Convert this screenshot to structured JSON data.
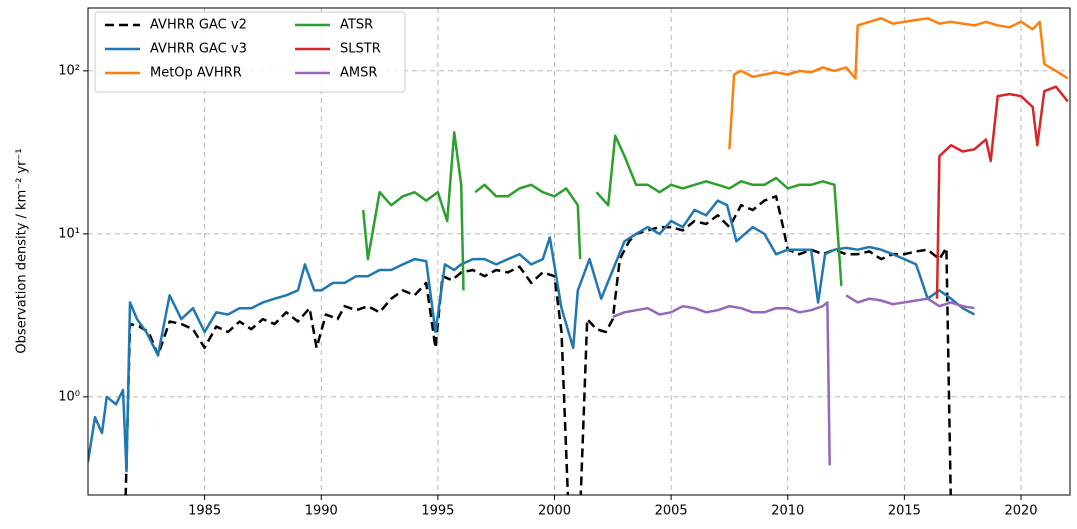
{
  "chart_data": {
    "type": "line",
    "ylabel": "Observation density / km⁻² yr⁻¹",
    "xlim": [
      1980,
      2022.1
    ],
    "xticks": [
      1985,
      1990,
      1995,
      2000,
      2005,
      2010,
      2015,
      2020
    ],
    "ylim": [
      0.25,
      243
    ],
    "yscale": "log",
    "yticks": [
      {
        "value": 1,
        "label": "10⁰"
      },
      {
        "value": 10,
        "label": "10¹"
      },
      {
        "value": 100,
        "label": "10²"
      }
    ],
    "grid": true,
    "legend": "upper left",
    "series": [
      {
        "name": "AVHRR GAC v2",
        "color": "#000000",
        "linestyle": "dashed",
        "x": [
          1981.6,
          1981.8,
          1982.2,
          1982.6,
          1983,
          1983.5,
          1984,
          1984.5,
          1985,
          1985.5,
          1986,
          1986.5,
          1987,
          1987.5,
          1988,
          1988.5,
          1989,
          1989.5,
          1989.8,
          1990.2,
          1990.7,
          1991,
          1991.5,
          1992,
          1992.5,
          1993,
          1993.5,
          1994,
          1994.5,
          1994.9,
          1995.2,
          1995.6,
          1996,
          1996.5,
          1997,
          1997.5,
          1998,
          1998.5,
          1999,
          1999.5,
          2000,
          2000.3,
          2000.6,
          2000.8,
          2001.1,
          2001.4,
          2001.8,
          2002.2,
          2002.5,
          2002.8,
          2003.2,
          2003.5,
          2004,
          2004.5,
          2005,
          2005.5,
          2006,
          2006.5,
          2007,
          2007.5,
          2008,
          2008.5,
          2009,
          2009.5,
          2009.8,
          2010,
          2010.5,
          2011,
          2011.5,
          2012,
          2012.5,
          2013,
          2013.5,
          2014,
          2014.5,
          2015,
          2015.5,
          2016,
          2016.5,
          2016.8,
          2017
        ],
        "values": [
          0.2,
          2.8,
          2.7,
          2.5,
          1.8,
          2.9,
          2.8,
          2.6,
          2.0,
          2.7,
          2.5,
          2.9,
          2.6,
          3.0,
          2.8,
          3.3,
          2.9,
          3.5,
          2.0,
          3.2,
          3.0,
          3.6,
          3.4,
          3.6,
          3.3,
          4.0,
          4.5,
          4.2,
          5.0,
          2.0,
          5.5,
          5.2,
          5.8,
          6.0,
          5.5,
          6.0,
          5.8,
          6.3,
          5.0,
          5.8,
          5.5,
          2.5,
          0.2,
          0.2,
          0.2,
          3.0,
          2.6,
          2.5,
          3.0,
          7.0,
          9.0,
          10.0,
          10.5,
          11.0,
          11.0,
          10.5,
          12.0,
          11.5,
          13.0,
          11.0,
          15.0,
          14.0,
          16.0,
          17.0,
          11.0,
          8.0,
          7.5,
          8.0,
          7.5,
          8.0,
          7.5,
          7.5,
          7.8,
          7.0,
          7.5,
          7.5,
          7.8,
          8.0,
          7.0,
          8.2,
          0.2
        ]
      },
      {
        "name": "AVHRR GAC v3",
        "color": "#1f77b4",
        "linestyle": "solid",
        "x": [
          1980,
          1980.3,
          1980.6,
          1980.8,
          1981.2,
          1981.5,
          1981.65,
          1981.8,
          1982.1,
          1982.5,
          1983,
          1983.5,
          1984,
          1984.5,
          1985,
          1985.5,
          1986,
          1986.5,
          1987,
          1987.5,
          1988,
          1988.5,
          1989,
          1989.3,
          1989.7,
          1990,
          1990.5,
          1991,
          1991.5,
          1992,
          1992.5,
          1993,
          1993.5,
          1994,
          1994.5,
          1994.9,
          1995.3,
          1995.7,
          1996,
          1996.5,
          1997,
          1997.5,
          1998,
          1998.5,
          1999,
          1999.5,
          1999.8,
          2000.3,
          2000.8,
          2001,
          2001.5,
          2002,
          2002.5,
          2003,
          2003.5,
          2004,
          2004.5,
          2005,
          2005.5,
          2006,
          2006.5,
          2007,
          2007.4,
          2007.8,
          2008.5,
          2009,
          2009.5,
          2010,
          2010.5,
          2011,
          2011.3,
          2011.6,
          2012,
          2012.5,
          2013,
          2013.5,
          2014,
          2014.5,
          2015,
          2015.5,
          2016,
          2016.5,
          2017,
          2017.5,
          2018
        ],
        "values": [
          0.4,
          0.75,
          0.6,
          1.0,
          0.9,
          1.1,
          0.35,
          3.8,
          3.0,
          2.5,
          1.8,
          4.2,
          3.0,
          3.5,
          2.5,
          3.3,
          3.2,
          3.5,
          3.5,
          3.8,
          4.0,
          4.2,
          4.5,
          6.5,
          4.5,
          4.5,
          5.0,
          5.0,
          5.5,
          5.5,
          6.0,
          6.0,
          6.5,
          7.0,
          6.8,
          2.5,
          6.5,
          6.0,
          6.5,
          7.0,
          7.0,
          6.5,
          7.0,
          7.5,
          6.5,
          7.0,
          9.5,
          3.5,
          2.0,
          4.5,
          7.0,
          4.0,
          6.0,
          9.0,
          10.0,
          11.0,
          10.0,
          12.0,
          11.0,
          14.0,
          13.0,
          16.0,
          15.0,
          9.0,
          11.0,
          10.0,
          7.5,
          8.0,
          8.0,
          8.0,
          3.8,
          7.5,
          8.0,
          8.2,
          8.0,
          8.3,
          8.0,
          7.5,
          7.0,
          6.5,
          4.0,
          4.5,
          4.0,
          3.5,
          3.2
        ]
      },
      {
        "name": "MetOp AVHRR",
        "color": "#ff7f0e",
        "linestyle": "solid",
        "x": [
          2007.5,
          2007.7,
          2008,
          2008.5,
          2009,
          2009.5,
          2010,
          2010.5,
          2011,
          2011.5,
          2012,
          2012.5,
          2012.9,
          2013,
          2013.5,
          2014,
          2014.5,
          2015,
          2015.5,
          2016,
          2016.5,
          2017,
          2017.5,
          2018,
          2018.5,
          2019,
          2019.5,
          2020,
          2020.5,
          2020.8,
          2021,
          2021.5,
          2022
        ],
        "values": [
          33,
          95,
          100,
          92,
          95,
          98,
          95,
          100,
          98,
          105,
          100,
          105,
          90,
          190,
          200,
          210,
          195,
          200,
          205,
          210,
          195,
          200,
          195,
          190,
          200,
          190,
          185,
          200,
          180,
          200,
          110,
          100,
          90
        ]
      },
      {
        "name": "ATSR",
        "color": "#2ca02c",
        "linestyle": "solid",
        "x": [
          1991.8,
          1992,
          1992.5,
          1993,
          1993.5,
          1994,
          1994.5,
          1995,
          1995.4,
          1995.7,
          1996,
          1996.1,
          1996.3,
          1996.6,
          1997,
          1997.5,
          1998,
          1998.5,
          1999,
          1999.5,
          2000,
          2000.5,
          2001,
          2001.1,
          2001.4,
          2001.8,
          2002.3,
          2002.6,
          2003,
          2003.5,
          2004,
          2004.5,
          2005,
          2005.5,
          2006,
          2006.5,
          2007,
          2007.5,
          2008,
          2008.5,
          2009,
          2009.5,
          2010,
          2010.5,
          2011,
          2011.5,
          2012,
          2012.3
        ],
        "values": [
          14,
          7,
          18,
          15,
          17,
          18,
          16,
          18,
          12,
          42,
          20,
          4.5,
          null,
          18,
          20,
          17,
          17,
          19,
          20,
          18,
          17,
          19,
          15,
          7,
          null,
          18,
          15,
          40,
          30,
          20,
          20,
          18,
          20,
          19,
          20,
          21,
          20,
          19,
          21,
          20,
          20,
          22,
          19,
          20,
          20,
          21,
          20,
          4.8
        ]
      },
      {
        "name": "SLSTR",
        "color": "#d62728",
        "linestyle": "solid",
        "x": [
          2016.4,
          2016.5,
          2017,
          2017.5,
          2018,
          2018.5,
          2018.7,
          2019,
          2019.5,
          2020,
          2020.5,
          2020.7,
          2021,
          2021.5,
          2022
        ],
        "values": [
          4,
          30,
          35,
          32,
          33,
          38,
          28,
          70,
          72,
          70,
          60,
          35,
          75,
          80,
          65
        ]
      },
      {
        "name": "AMSR",
        "color": "#9467bd",
        "linestyle": "solid",
        "x": [
          2002.5,
          2003,
          2003.5,
          2004,
          2004.5,
          2005,
          2005.5,
          2006,
          2006.5,
          2007,
          2007.5,
          2008,
          2008.5,
          2009,
          2009.5,
          2010,
          2010.5,
          2011,
          2011.5,
          2011.7,
          2011.8,
          2012.2,
          2012.5,
          2013,
          2013.5,
          2014,
          2014.5,
          2015,
          2015.5,
          2016,
          2016.5,
          2017,
          2017.5,
          2018
        ],
        "values": [
          3.1,
          3.3,
          3.4,
          3.5,
          3.2,
          3.3,
          3.6,
          3.5,
          3.3,
          3.4,
          3.6,
          3.5,
          3.3,
          3.3,
          3.5,
          3.5,
          3.3,
          3.4,
          3.6,
          3.8,
          0.38,
          null,
          4.2,
          3.8,
          4.0,
          3.9,
          3.7,
          3.8,
          3.9,
          4.0,
          3.6,
          3.8,
          3.6,
          3.5
        ]
      }
    ]
  }
}
